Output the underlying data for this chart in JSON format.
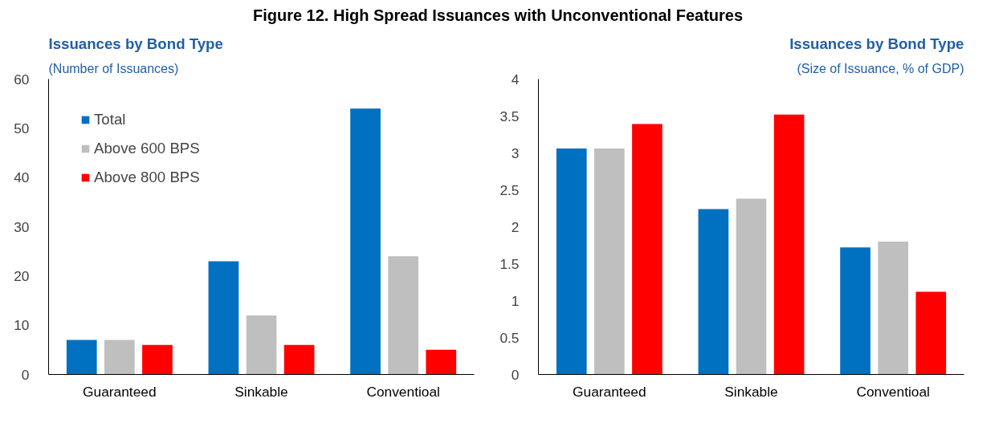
{
  "chart_data": [
    {
      "type": "bar",
      "title": "Issuances by Bond Type",
      "subtitle": "(Number of Issuances)",
      "annotations": [
        "Figure 12. High Spread Issuances with Unconventional Features"
      ],
      "categories": [
        "Guaranteed",
        "Sinkable",
        "Conventioal"
      ],
      "ylim": [
        0,
        60
      ],
      "yticks": [
        0,
        10,
        20,
        30,
        40,
        50,
        60
      ],
      "grid": false,
      "legend": "top left",
      "series": [
        {
          "name": "Total",
          "color": "#0070c0",
          "values": [
            7,
            23,
            54
          ]
        },
        {
          "name": "Above 600 BPS",
          "color": "#bfbfbf",
          "values": [
            7,
            12,
            24
          ]
        },
        {
          "name": "Above 800 BPS",
          "color": "#ff0000",
          "values": [
            6,
            6,
            5
          ]
        }
      ]
    },
    {
      "type": "bar",
      "title": "Issuances by Bond Type",
      "subtitle": "(Size of Issuance, % of GDP)",
      "categories": [
        "Guaranteed",
        "Sinkable",
        "Conventioal"
      ],
      "ylim": [
        0,
        4
      ],
      "yticks": [
        0,
        0.5,
        1,
        1.5,
        2,
        2.5,
        3,
        3.5,
        4
      ],
      "grid": false,
      "series": [
        {
          "color": "#0070c0",
          "values": [
            3.06,
            2.24,
            1.72
          ]
        },
        {
          "color": "#bfbfbf",
          "values": [
            3.06,
            2.38,
            1.8
          ]
        },
        {
          "color": "#ff0000",
          "values": [
            3.39,
            3.52,
            1.12
          ]
        }
      ]
    }
  ]
}
